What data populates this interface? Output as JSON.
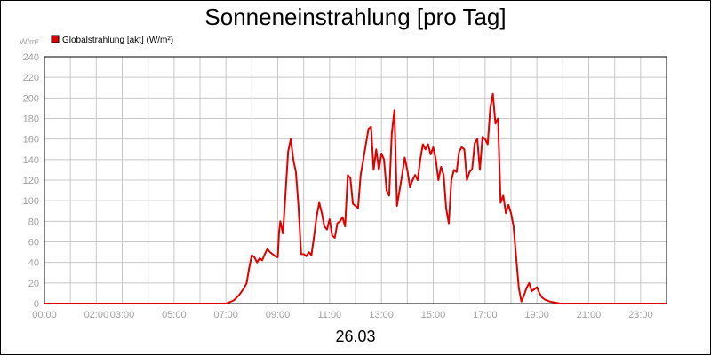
{
  "chart_data": {
    "type": "line",
    "title": "Sonneneinstrahlung [pro Tag]",
    "date_label": "26.03",
    "ylabel": "W/m²",
    "ylim": [
      0,
      240
    ],
    "yticks": [
      0,
      20,
      40,
      60,
      80,
      100,
      120,
      140,
      160,
      180,
      200,
      220,
      240
    ],
    "xlim": [
      0,
      24
    ],
    "xticks": [
      "00:00",
      "02:00",
      "03:00",
      "05:00",
      "07:00",
      "09:00",
      "11:00",
      "13:00",
      "15:00",
      "17:00",
      "19:00",
      "21:00",
      "23:00"
    ],
    "xtick_hours": [
      0,
      2,
      3,
      5,
      7,
      9,
      11,
      13,
      15,
      17,
      19,
      21,
      23
    ],
    "grid": true,
    "legend_position": "top-left",
    "series": [
      {
        "name": "Globalstrahlung [akt] (W/m²)",
        "color": "#e00000",
        "x": [
          0,
          7.0,
          7.3,
          7.5,
          7.7,
          7.8,
          7.9,
          8.0,
          8.1,
          8.2,
          8.3,
          8.4,
          8.5,
          8.6,
          8.7,
          8.8,
          8.9,
          9.0,
          9.05,
          9.1,
          9.2,
          9.3,
          9.4,
          9.5,
          9.6,
          9.7,
          9.8,
          9.9,
          10.0,
          10.1,
          10.2,
          10.3,
          10.4,
          10.5,
          10.6,
          10.7,
          10.8,
          10.9,
          11.0,
          11.1,
          11.2,
          11.3,
          11.4,
          11.5,
          11.6,
          11.7,
          11.8,
          11.9,
          12.0,
          12.1,
          12.2,
          12.3,
          12.4,
          12.5,
          12.6,
          12.7,
          12.8,
          12.9,
          13.0,
          13.1,
          13.2,
          13.3,
          13.4,
          13.5,
          13.6,
          13.7,
          13.8,
          13.9,
          14.0,
          14.1,
          14.2,
          14.3,
          14.4,
          14.5,
          14.6,
          14.7,
          14.8,
          14.9,
          15.0,
          15.1,
          15.2,
          15.3,
          15.4,
          15.5,
          15.6,
          15.7,
          15.8,
          15.9,
          16.0,
          16.1,
          16.2,
          16.3,
          16.4,
          16.5,
          16.6,
          16.7,
          16.8,
          16.9,
          17.0,
          17.1,
          17.2,
          17.3,
          17.4,
          17.5,
          17.6,
          17.7,
          17.8,
          17.9,
          18.0,
          18.1,
          18.2,
          18.3,
          18.4,
          18.5,
          18.6,
          18.7,
          18.8,
          18.9,
          19.0,
          19.1,
          19.2,
          19.3,
          19.5,
          19.7,
          19.9,
          20.1,
          24.0
        ],
        "y": [
          0,
          0,
          3,
          8,
          15,
          20,
          35,
          47,
          45,
          40,
          44,
          42,
          48,
          53,
          50,
          48,
          46,
          45,
          70,
          80,
          68,
          108,
          148,
          160,
          140,
          128,
          95,
          48,
          48,
          46,
          50,
          47,
          65,
          85,
          98,
          88,
          75,
          72,
          82,
          66,
          64,
          78,
          80,
          84,
          75,
          125,
          122,
          97,
          95,
          93,
          125,
          140,
          155,
          170,
          172,
          130,
          150,
          130,
          146,
          140,
          110,
          105,
          165,
          188,
          95,
          110,
          125,
          142,
          130,
          113,
          120,
          125,
          120,
          140,
          155,
          150,
          155,
          145,
          152,
          140,
          120,
          133,
          125,
          92,
          78,
          120,
          130,
          128,
          148,
          152,
          150,
          120,
          128,
          131,
          156,
          160,
          130,
          162,
          160,
          155,
          190,
          204,
          175,
          180,
          98,
          105,
          88,
          96,
          88,
          75,
          45,
          15,
          2,
          8,
          15,
          20,
          12,
          14,
          16,
          10,
          6,
          4,
          2,
          1,
          0,
          0,
          0
        ]
      }
    ]
  }
}
